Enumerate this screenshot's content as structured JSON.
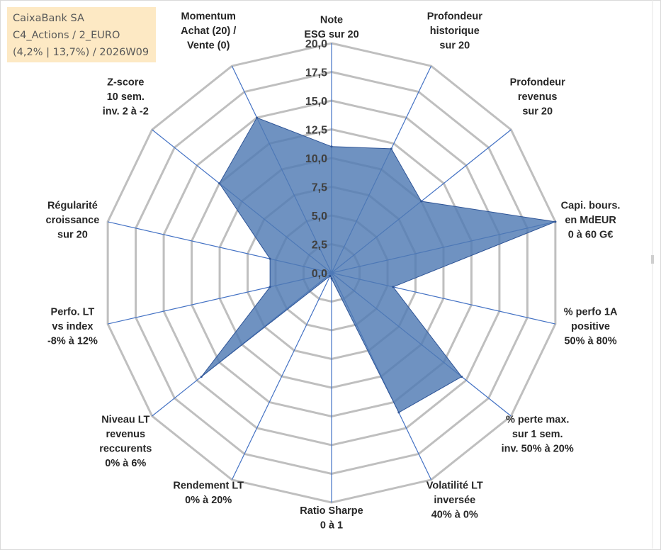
{
  "info": {
    "line1": "CaixaBank SA",
    "line2": "C4_Actions / 2_EURO",
    "line3": "(4,2% | 13,7%) / 2026W09"
  },
  "colors": {
    "fill": "#4f7ab3",
    "stroke": "#2f5597",
    "spoke": "#4472c4",
    "grid": "#bfbfbf",
    "axis_text": "#262626",
    "tick_text": "#404040"
  },
  "chart_data": {
    "type": "radar",
    "title": "",
    "range": [
      0,
      20
    ],
    "tick_labels": [
      "0,0",
      "2,5",
      "5,0",
      "7,5",
      "10,0",
      "12,5",
      "15,0",
      "17,5",
      "20,0"
    ],
    "tick_values": [
      0,
      2.5,
      5,
      7.5,
      10,
      12.5,
      15,
      17.5,
      20
    ],
    "axes": [
      {
        "lines": [
          "Note",
          "ESG sur 20"
        ],
        "value": 11
      },
      {
        "lines": [
          "Profondeur",
          "historique",
          "sur 20"
        ],
        "value": 12
      },
      {
        "lines": [
          "Profondeur",
          "revenus",
          "sur 20"
        ],
        "value": 10
      },
      {
        "lines": [
          "Capi. bours.",
          "en MdEUR",
          "0 à 60 G€"
        ],
        "value": 20
      },
      {
        "lines": [
          "% perfo 1A",
          "positive",
          "50% à 80%"
        ],
        "value": 5.5
      },
      {
        "lines": [
          "% perte max.",
          "sur 1 sem.",
          "inv. 50% à 20%"
        ],
        "value": 14.5
      },
      {
        "lines": [
          "Volatilité LT",
          "inversée",
          "40% à 0%"
        ],
        "value": 13.5
      },
      {
        "lines": [
          "Ratio Sharpe",
          "0 à 1"
        ],
        "value": 0.5
      },
      {
        "lines": [
          "Rendement LT",
          "0% à 20%"
        ],
        "value": 0.3
      },
      {
        "lines": [
          "Niveau LT",
          "revenus",
          "reccurents",
          "0% à 6%"
        ],
        "value": 14.5
      },
      {
        "lines": [
          "Perfo. LT",
          "vs index",
          "-8% à 12%"
        ],
        "value": 5.5
      },
      {
        "lines": [
          "Régularité",
          "croissance",
          "sur 20"
        ],
        "value": 5.5
      },
      {
        "lines": [
          "Z-score",
          "10 sem.",
          "inv. 2 à -2"
        ],
        "value": 12.5
      },
      {
        "lines": [
          "Momentum",
          "Achat (20) /",
          "Vente (0)"
        ],
        "value": 15
      }
    ]
  }
}
